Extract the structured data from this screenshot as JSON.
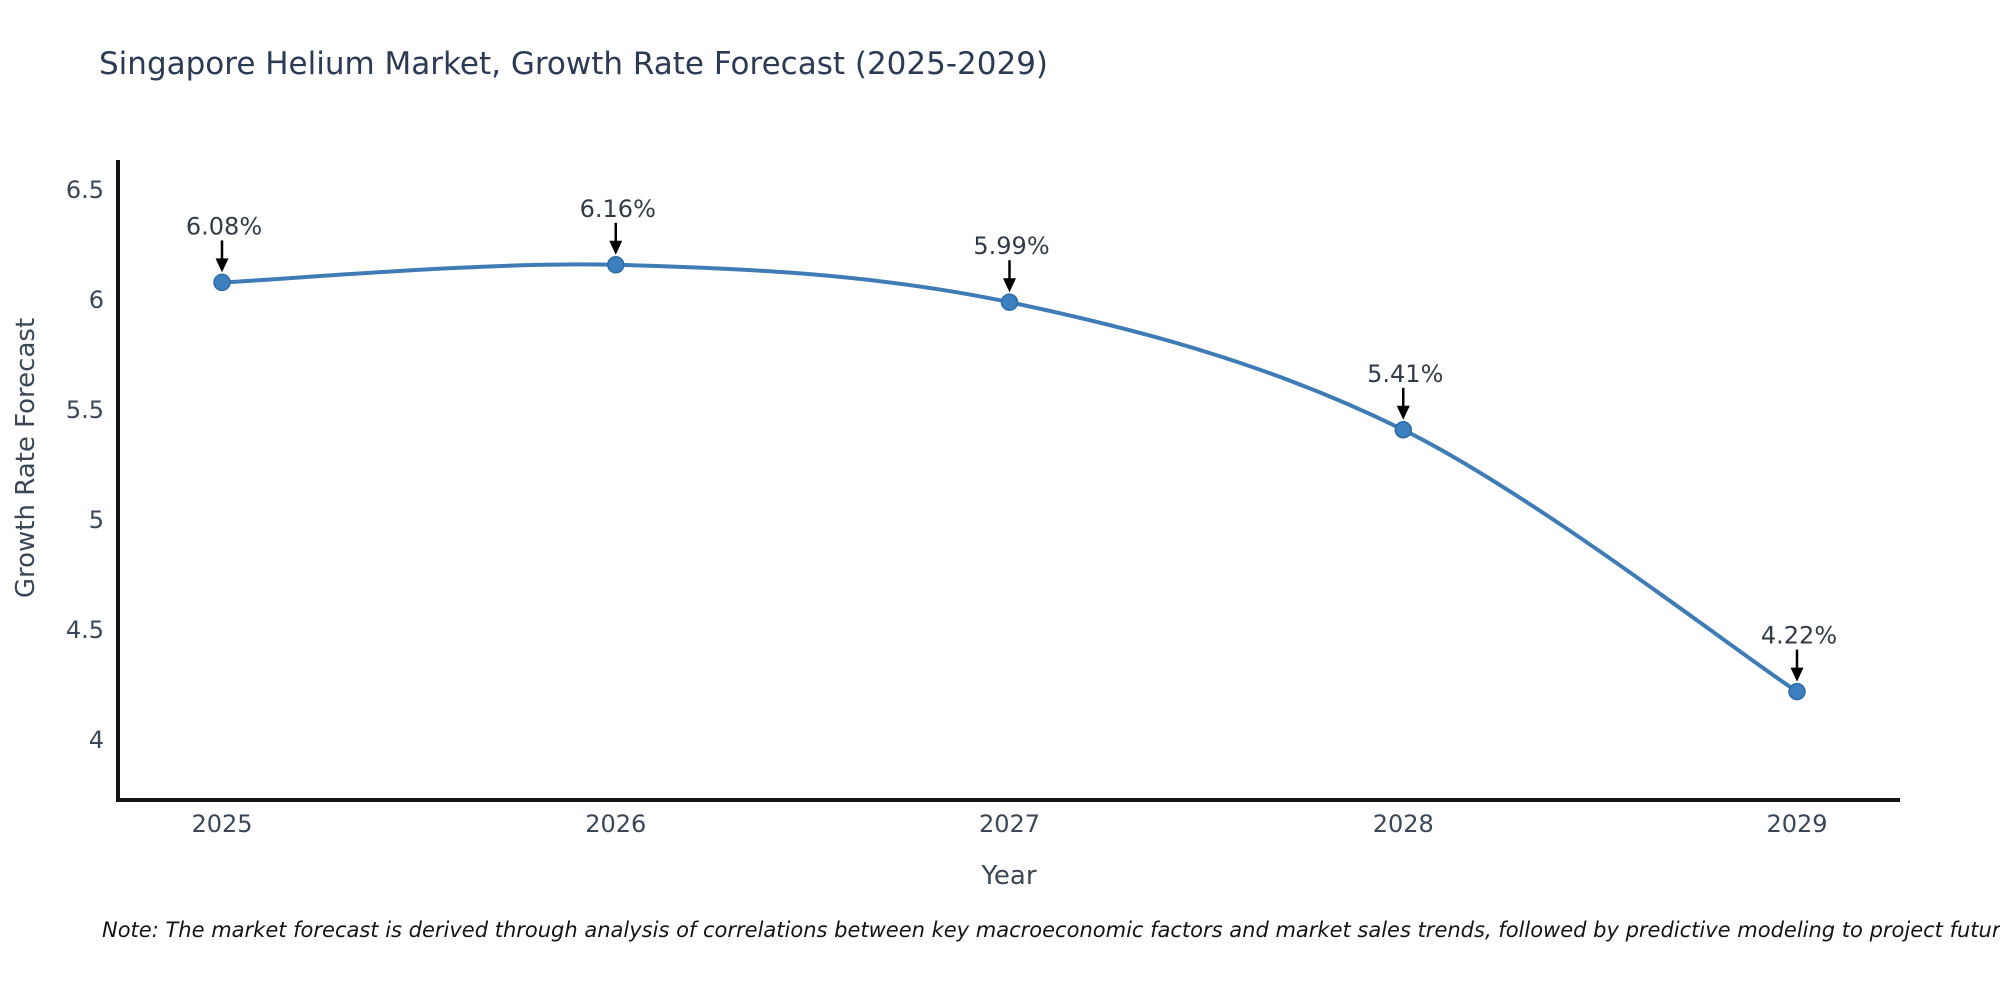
{
  "chart_data": {
    "type": "line",
    "title": "Singapore Helium Market, Growth Rate Forecast (2025-2029)",
    "xlabel": "Year",
    "ylabel": "Growth Rate Forecast",
    "x": [
      2025,
      2026,
      2027,
      2028,
      2029
    ],
    "values": [
      6.08,
      6.16,
      5.99,
      5.41,
      4.22
    ],
    "point_labels": [
      "6.08%",
      "6.16%",
      "5.99%",
      "5.41%",
      "4.22%"
    ],
    "yticks": [
      6.5,
      6,
      5.5,
      5,
      4.5,
      4
    ],
    "ytick_labels": [
      "6.5",
      "6",
      "5.5",
      "5",
      "4.5",
      "4"
    ],
    "xtick_labels": [
      "2025",
      "2026",
      "2027",
      "2028",
      "2029"
    ],
    "ylim": [
      3.73,
      6.63
    ],
    "grid": false,
    "legend": "none",
    "line_color": "#3f7cb6",
    "marker_color": "#3c80c0",
    "marker_edge_color": "#2d6aa6",
    "axis_color": "#151515",
    "annotation_arrow_color": "#000000",
    "title_color": "#2b3a55",
    "tick_color": "#3b4656"
  },
  "note": "Note: The market forecast is derived through analysis of correlations between key macroeconomic factors and market sales trends, followed by predictive modeling to project future sales"
}
